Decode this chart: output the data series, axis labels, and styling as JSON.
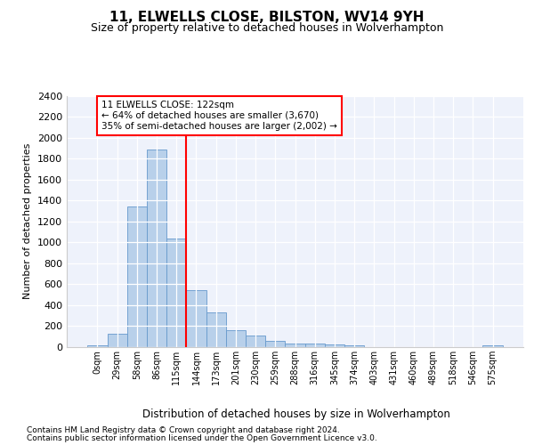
{
  "title": "11, ELWELLS CLOSE, BILSTON, WV14 9YH",
  "subtitle": "Size of property relative to detached houses in Wolverhampton",
  "xlabel": "Distribution of detached houses by size in Wolverhampton",
  "ylabel": "Number of detached properties",
  "bar_labels": [
    "0sqm",
    "29sqm",
    "58sqm",
    "86sqm",
    "115sqm",
    "144sqm",
    "173sqm",
    "201sqm",
    "230sqm",
    "259sqm",
    "288sqm",
    "316sqm",
    "345sqm",
    "374sqm",
    "403sqm",
    "431sqm",
    "460sqm",
    "489sqm",
    "518sqm",
    "546sqm",
    "575sqm"
  ],
  "bar_values": [
    20,
    130,
    1340,
    1890,
    1040,
    540,
    335,
    165,
    110,
    60,
    38,
    30,
    25,
    20,
    0,
    0,
    0,
    0,
    0,
    0,
    20
  ],
  "bar_color": "#b8d0ea",
  "bar_edgecolor": "#6699cc",
  "vline_color": "red",
  "vline_pos": 4.5,
  "annotation_title": "11 ELWELLS CLOSE: 122sqm",
  "annotation_line1": "← 64% of detached houses are smaller (3,670)",
  "annotation_line2": "35% of semi-detached houses are larger (2,002) →",
  "ylim": [
    0,
    2400
  ],
  "yticks": [
    0,
    200,
    400,
    600,
    800,
    1000,
    1200,
    1400,
    1600,
    1800,
    2000,
    2200,
    2400
  ],
  "footer1": "Contains HM Land Registry data © Crown copyright and database right 2024.",
  "footer2": "Contains public sector information licensed under the Open Government Licence v3.0.",
  "plot_bg_color": "#eef2fb"
}
